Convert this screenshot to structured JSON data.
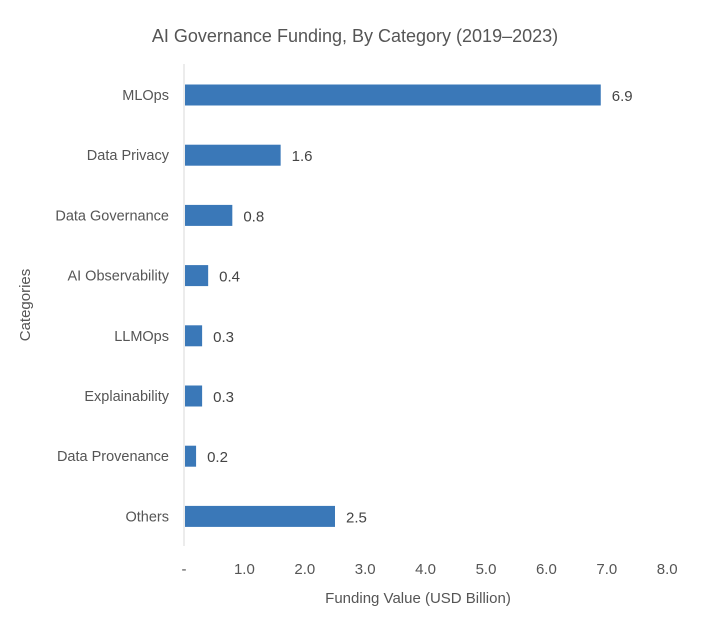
{
  "chart_data": {
    "type": "bar",
    "orientation": "horizontal",
    "title": "AI Governance Funding, By Category (2019–2023)",
    "xlabel": "Funding Value (USD Billion)",
    "ylabel": "Categories",
    "categories": [
      "MLOps",
      "Data Privacy",
      "Data Governance",
      "AI Observability",
      "LLMOps",
      "Explainability",
      "Data Provenance",
      "Others"
    ],
    "values": [
      6.9,
      1.6,
      0.8,
      0.4,
      0.3,
      0.3,
      0.2,
      2.5
    ],
    "data_labels": [
      "6.9",
      "1.6",
      "0.8",
      "0.4",
      "0.3",
      "0.3",
      "0.2",
      "2.5"
    ],
    "xlim": [
      0,
      8
    ],
    "xticks": [
      0,
      1,
      2,
      3,
      4,
      5,
      6,
      7,
      8
    ],
    "xtick_labels": [
      "-",
      "1.0",
      "2.0",
      "3.0",
      "4.0",
      "5.0",
      "6.0",
      "7.0",
      "8.0"
    ],
    "grid": false,
    "legend": "none",
    "bar_color": "#3a78b8"
  }
}
